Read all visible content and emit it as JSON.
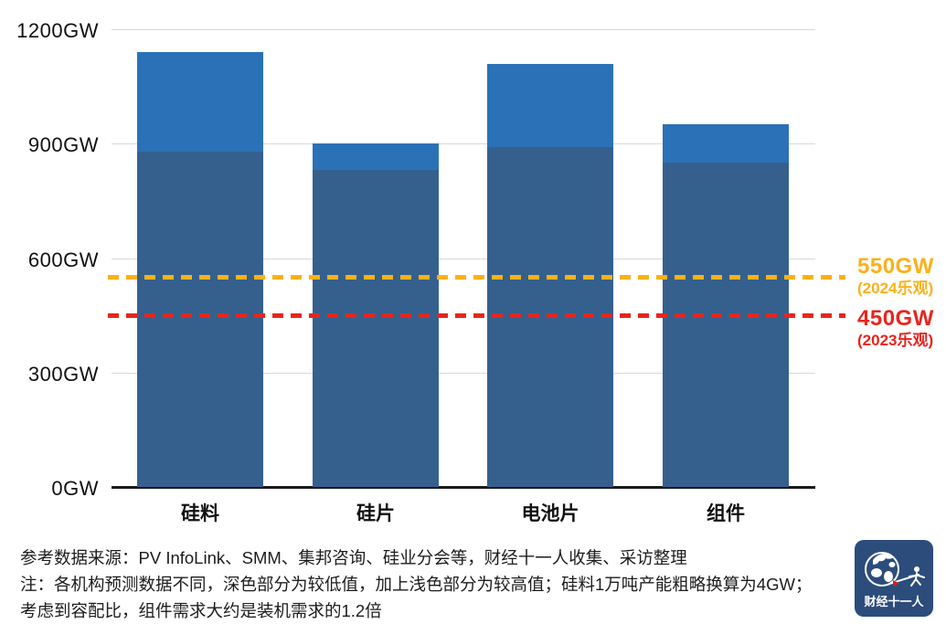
{
  "chart_data": {
    "type": "bar",
    "title": "",
    "categories": [
      "硅料",
      "硅片",
      "电池片",
      "组件"
    ],
    "series": [
      {
        "name": "较低值（深色部分）",
        "role": "low",
        "color": "#35608D",
        "values": [
          880,
          830,
          890,
          850
        ]
      },
      {
        "name": "较高值（深色加浅色部分）",
        "role": "high",
        "color": "#2B71B7",
        "values": [
          1140,
          900,
          1110,
          950
        ]
      }
    ],
    "ylim": [
      0,
      1200
    ],
    "yticks": [
      {
        "value": 0,
        "label": "0GW"
      },
      {
        "value": 300,
        "label": "300GW"
      },
      {
        "value": 600,
        "label": "600GW"
      },
      {
        "value": 900,
        "label": "900GW"
      },
      {
        "value": 1200,
        "label": "1200GW"
      }
    ],
    "reference_lines": [
      {
        "value": 550,
        "label": "550GW",
        "sublabel": "(2024乐观)",
        "color": "#FBB117"
      },
      {
        "value": 450,
        "label": "450GW",
        "sublabel": "(2023乐观)",
        "color": "#E8251C"
      }
    ],
    "grid": true,
    "legend_position": "none"
  },
  "footer": {
    "line1": "参考数据来源：PV InfoLink、SMM、集邦咨询、硅业分会等，财经十一人收集、采访整理",
    "line2": "注：各机构预测数据不同，深色部分为较低值，加上浅色部分为较高值；硅料1万吨产能粗略换算为4GW；",
    "line3": "考虑到容配比，组件需求大约是装机需求的1.2倍"
  },
  "logo": {
    "text": "财经十一人",
    "bg_color": "#2C4C7C",
    "accent_color": "#D62018"
  }
}
